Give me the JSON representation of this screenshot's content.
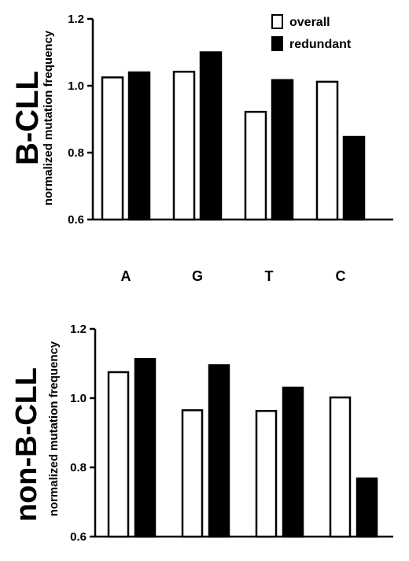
{
  "chart_data": [
    {
      "type": "bar",
      "title": "B-CLL",
      "ylabel": "normalized mutation frequency",
      "categories": [
        "A",
        "G",
        "T",
        "C"
      ],
      "yticks": [
        "0.6",
        "0.8",
        "1.0",
        "1.2"
      ],
      "ylim": [
        0.6,
        1.2
      ],
      "grid": false,
      "legend": "top-right",
      "series": [
        {
          "name": "overall",
          "fill": "#ffffff",
          "values": [
            1.025,
            1.042,
            0.922,
            1.012
          ]
        },
        {
          "name": "redundant",
          "fill": "#000000",
          "values": [
            1.04,
            1.1,
            1.017,
            0.847
          ]
        }
      ]
    },
    {
      "type": "bar",
      "title": "non-B-CLL",
      "ylabel": "normalized mutation frequency",
      "categories": [
        "A",
        "G",
        "T",
        "C"
      ],
      "yticks": [
        "0.6",
        "0.8",
        "1.0",
        "1.2"
      ],
      "ylim": [
        0.6,
        1.2
      ],
      "grid": false,
      "series": [
        {
          "name": "overall",
          "fill": "#ffffff",
          "values": [
            1.075,
            0.965,
            0.963,
            1.002
          ]
        },
        {
          "name": "redundant",
          "fill": "#000000",
          "values": [
            1.113,
            1.095,
            1.03,
            0.768
          ]
        }
      ]
    }
  ]
}
